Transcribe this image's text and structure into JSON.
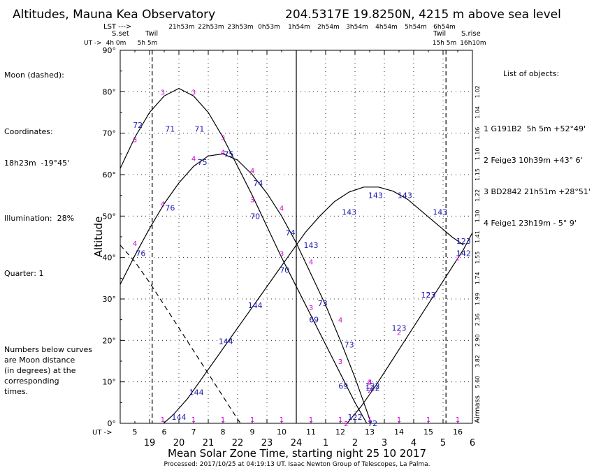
{
  "header": {
    "title": "Altitudes, Mauna Kea Observatory",
    "location": "204.5317E  19.8250N, 4215 m above sea level"
  },
  "lst_labels": [
    "4h 0m",
    "5h 5m",
    "21h53m",
    "22h53m",
    "23h53m",
    "0h53m",
    "1h54m",
    "2h54m",
    "3h54m",
    "4h54m",
    "5h54m",
    "6h54m",
    "15h 5m",
    "16h10m"
  ],
  "top_labels": {
    "lst": "LST --->",
    "sset": "S.set",
    "twil1": "Twil",
    "twil2": "Twil",
    "srise": "S.rise",
    "ut": "UT ->",
    "ut_bottom": "UT ->"
  },
  "moon_info": {
    "title": "Moon (dashed):",
    "coords_label": "Coordinates:",
    "coords": "18h23m  -19°45'",
    "illum": "Illumination:  28%",
    "quarter": "Quarter: 1",
    "note": "Numbers below curves\nare Moon distance\n(in degrees) at the\ncorresponding\ntimes."
  },
  "objects_title": "List of objects:",
  "objects": [
    "1 G191B2  5h 5m +52°49'",
    "2 Feige3 10h39m +43° 6'",
    "3 BD2842 21h51m +28°51'",
    "4 Feige1 23h19m - 5° 9'"
  ],
  "chart_data": {
    "type": "line",
    "title": "Altitudes, Mauna Kea Observatory",
    "xlabel": "Mean Solar Zone Time, starting night 25 10 2017",
    "ylabel": "Altitude",
    "xlim": [
      18.0,
      30.0
    ],
    "ylim": [
      0,
      90
    ],
    "y_ticks": [
      "0°",
      "10°",
      "20°",
      "30°",
      "40°",
      "50°",
      "60°",
      "70°",
      "80°",
      "90°"
    ],
    "x_ticks_local": [
      "19",
      "20",
      "21",
      "22",
      "23",
      "24",
      "1",
      "2",
      "3",
      "4",
      "5",
      "6"
    ],
    "x_ticks_ut": [
      "5",
      "6",
      "7",
      "8",
      "9",
      "10",
      "11",
      "12",
      "13",
      "14",
      "15",
      "16"
    ],
    "airmass_label": "Airmass",
    "airmass_ticks": [
      {
        "alt": 80,
        "label": "1.02"
      },
      {
        "alt": 75,
        "label": "1.04"
      },
      {
        "alt": 70,
        "label": "1.06"
      },
      {
        "alt": 65,
        "label": "1.10"
      },
      {
        "alt": 60,
        "label": "1.15"
      },
      {
        "alt": 55,
        "label": "1.22"
      },
      {
        "alt": 50,
        "label": "1.30"
      },
      {
        "alt": 45,
        "label": "1.41"
      },
      {
        "alt": 40,
        "label": "1.55"
      },
      {
        "alt": 35,
        "label": "1.74"
      },
      {
        "alt": 30,
        "label": "1.99"
      },
      {
        "alt": 25,
        "label": "2.36"
      },
      {
        "alt": 20,
        "label": "2.90"
      },
      {
        "alt": 15,
        "label": "3.82"
      },
      {
        "alt": 10,
        "label": "5.60"
      }
    ],
    "vlines": [
      {
        "x": 19.09,
        "style": "dashed",
        "label": "Twil"
      },
      {
        "x": 24.0,
        "style": "solid"
      },
      {
        "x": 29.1,
        "style": "dashed",
        "label": "Twil"
      }
    ],
    "series": [
      {
        "name": "G191B2",
        "id": "1",
        "points": [
          [
            19.48,
            0
          ],
          [
            19.8,
            2
          ],
          [
            20.3,
            6
          ],
          [
            20.8,
            11
          ],
          [
            21.3,
            16
          ],
          [
            21.8,
            21
          ],
          [
            22.3,
            26
          ],
          [
            22.8,
            31
          ],
          [
            23.3,
            36
          ],
          [
            23.8,
            41
          ],
          [
            24.3,
            46
          ],
          [
            24.8,
            50
          ],
          [
            25.3,
            53.5
          ],
          [
            25.8,
            55.8
          ],
          [
            26.3,
            57
          ],
          [
            26.8,
            57
          ],
          [
            27.3,
            56
          ],
          [
            27.8,
            54
          ],
          [
            28.3,
            51
          ],
          [
            28.8,
            48
          ],
          [
            29.3,
            45
          ],
          [
            29.7,
            43
          ]
        ],
        "markers": [
          [
            19.45,
            1
          ],
          [
            20.5,
            1
          ],
          [
            21.5,
            1
          ],
          [
            22.5,
            1
          ],
          [
            23.5,
            1
          ],
          [
            24.5,
            1
          ],
          [
            25.5,
            1
          ],
          [
            26.5,
            1
          ],
          [
            27.5,
            1
          ],
          [
            28.5,
            1
          ],
          [
            29.5,
            1
          ]
        ],
        "distances": [
          {
            "x": 20,
            "y": 1.5,
            "d": "144"
          },
          {
            "x": 20.6,
            "y": 7.5,
            "d": "144"
          },
          {
            "x": 21.6,
            "y": 19.8,
            "d": "144"
          },
          {
            "x": 22.6,
            "y": 28.5,
            "d": "144"
          },
          {
            "x": 24.5,
            "y": 43,
            "d": "143"
          },
          {
            "x": 25.8,
            "y": 51,
            "d": "143"
          },
          {
            "x": 26.7,
            "y": 55,
            "d": "143"
          },
          {
            "x": 27.7,
            "y": 55,
            "d": "143"
          },
          {
            "x": 28.9,
            "y": 51,
            "d": "143"
          },
          {
            "x": 29.7,
            "y": 41,
            "d": "142"
          }
        ]
      },
      {
        "name": "Feige3",
        "id": "2",
        "points": [
          [
            25.73,
            0
          ],
          [
            26.2,
            4
          ],
          [
            26.7,
            9
          ],
          [
            27.2,
            14.5
          ],
          [
            27.7,
            20
          ],
          [
            28.2,
            25.5
          ],
          [
            28.7,
            31
          ],
          [
            29.2,
            36.5
          ],
          [
            29.7,
            42
          ],
          [
            30.0,
            46
          ]
        ],
        "markers": [
          [
            25.7,
            0
          ],
          [
            26.5,
            8
          ],
          [
            27.5,
            22
          ],
          [
            28.5,
            31
          ],
          [
            29.5,
            40
          ]
        ],
        "distances": [
          {
            "x": 26,
            "y": 1.5,
            "d": "122"
          },
          {
            "x": 26.6,
            "y": 8.5,
            "d": "122"
          },
          {
            "x": 27.5,
            "y": 23,
            "d": "123"
          },
          {
            "x": 28.5,
            "y": 31,
            "d": "123"
          },
          {
            "x": 29.7,
            "y": 44,
            "d": "123"
          }
        ]
      },
      {
        "name": "BD2842",
        "id": "3",
        "points": [
          [
            18.0,
            61.5
          ],
          [
            18.5,
            69
          ],
          [
            19.0,
            75
          ],
          [
            19.5,
            79
          ],
          [
            20.0,
            80.8
          ],
          [
            20.5,
            79
          ],
          [
            21.0,
            75
          ],
          [
            21.5,
            69
          ],
          [
            22.0,
            62
          ],
          [
            22.5,
            55
          ],
          [
            23.0,
            47.5
          ],
          [
            23.5,
            40
          ],
          [
            24.0,
            33
          ],
          [
            24.5,
            26
          ],
          [
            25.0,
            19
          ],
          [
            25.5,
            12
          ],
          [
            26.0,
            5
          ],
          [
            26.4,
            0
          ]
        ],
        "markers": [
          [
            18.5,
            68.5
          ],
          [
            19.45,
            80
          ],
          [
            20.5,
            80
          ],
          [
            21.5,
            69
          ],
          [
            22.5,
            54
          ],
          [
            23.5,
            41
          ],
          [
            24.5,
            28
          ],
          [
            25.5,
            15
          ],
          [
            26.5,
            10
          ]
        ],
        "distances": [
          {
            "x": 18.6,
            "y": 72,
            "d": "72"
          },
          {
            "x": 19.7,
            "y": 71,
            "d": "71"
          },
          {
            "x": 20.7,
            "y": 71,
            "d": "71"
          },
          {
            "x": 21.7,
            "y": 65,
            "d": "75"
          },
          {
            "x": 22.6,
            "y": 50,
            "d": "70"
          },
          {
            "x": 23.6,
            "y": 37,
            "d": "70"
          },
          {
            "x": 24.6,
            "y": 25,
            "d": "69"
          },
          {
            "x": 25.6,
            "y": 9,
            "d": "69"
          },
          {
            "x": 26.6,
            "y": 0,
            "d": "72"
          }
        ]
      },
      {
        "name": "Feige1",
        "id": "4",
        "points": [
          [
            18.0,
            33.5
          ],
          [
            18.5,
            40.5
          ],
          [
            19.0,
            47
          ],
          [
            19.5,
            53
          ],
          [
            20.0,
            58
          ],
          [
            20.5,
            62
          ],
          [
            21.0,
            64.5
          ],
          [
            21.5,
            65
          ],
          [
            22.0,
            63.5
          ],
          [
            22.5,
            60
          ],
          [
            23.0,
            55.5
          ],
          [
            23.5,
            50
          ],
          [
            24.0,
            43.5
          ],
          [
            24.5,
            36
          ],
          [
            25.0,
            28.5
          ],
          [
            25.5,
            20
          ],
          [
            26.0,
            11
          ],
          [
            26.4,
            3
          ],
          [
            26.55,
            0
          ]
        ],
        "markers": [
          [
            18.5,
            43.5
          ],
          [
            19.45,
            53
          ],
          [
            20.5,
            64
          ],
          [
            21.5,
            65.5
          ],
          [
            22.5,
            61
          ],
          [
            23.5,
            52
          ],
          [
            24.5,
            39
          ],
          [
            25.5,
            25
          ],
          [
            26.5,
            10
          ]
        ],
        "distances": [
          {
            "x": 18.7,
            "y": 41,
            "d": "76"
          },
          {
            "x": 19.7,
            "y": 52,
            "d": "76"
          },
          {
            "x": 20.8,
            "y": 63,
            "d": "75"
          },
          {
            "x": 21.7,
            "y": 65,
            "d": "75"
          },
          {
            "x": 22.7,
            "y": 58,
            "d": "74"
          },
          {
            "x": 23.8,
            "y": 46,
            "d": "74"
          },
          {
            "x": 24.9,
            "y": 29,
            "d": "73"
          },
          {
            "x": 25.8,
            "y": 19,
            "d": "73"
          },
          {
            "x": 26.6,
            "y": 9,
            "d": "122"
          }
        ]
      },
      {
        "name": "Moon",
        "style": "dashed",
        "points": [
          [
            18.0,
            43
          ],
          [
            18.5,
            39
          ],
          [
            19.0,
            34
          ],
          [
            19.5,
            28.5
          ],
          [
            20.0,
            23
          ],
          [
            20.5,
            17.5
          ],
          [
            21.0,
            12
          ],
          [
            21.5,
            6.5
          ],
          [
            22.0,
            1
          ],
          [
            22.1,
            0
          ]
        ]
      }
    ],
    "label_color": "#d200d2",
    "distance_color": "#1a1ab0",
    "axis_color": "#000000"
  },
  "footer": {
    "xlabel": "Mean Solar Zone Time, starting night 25 10 2017",
    "processed": "Processed: 2017/10/25 at 04:19:13 UT. Isaac  Newton Group of Telescopes, La Palma."
  }
}
